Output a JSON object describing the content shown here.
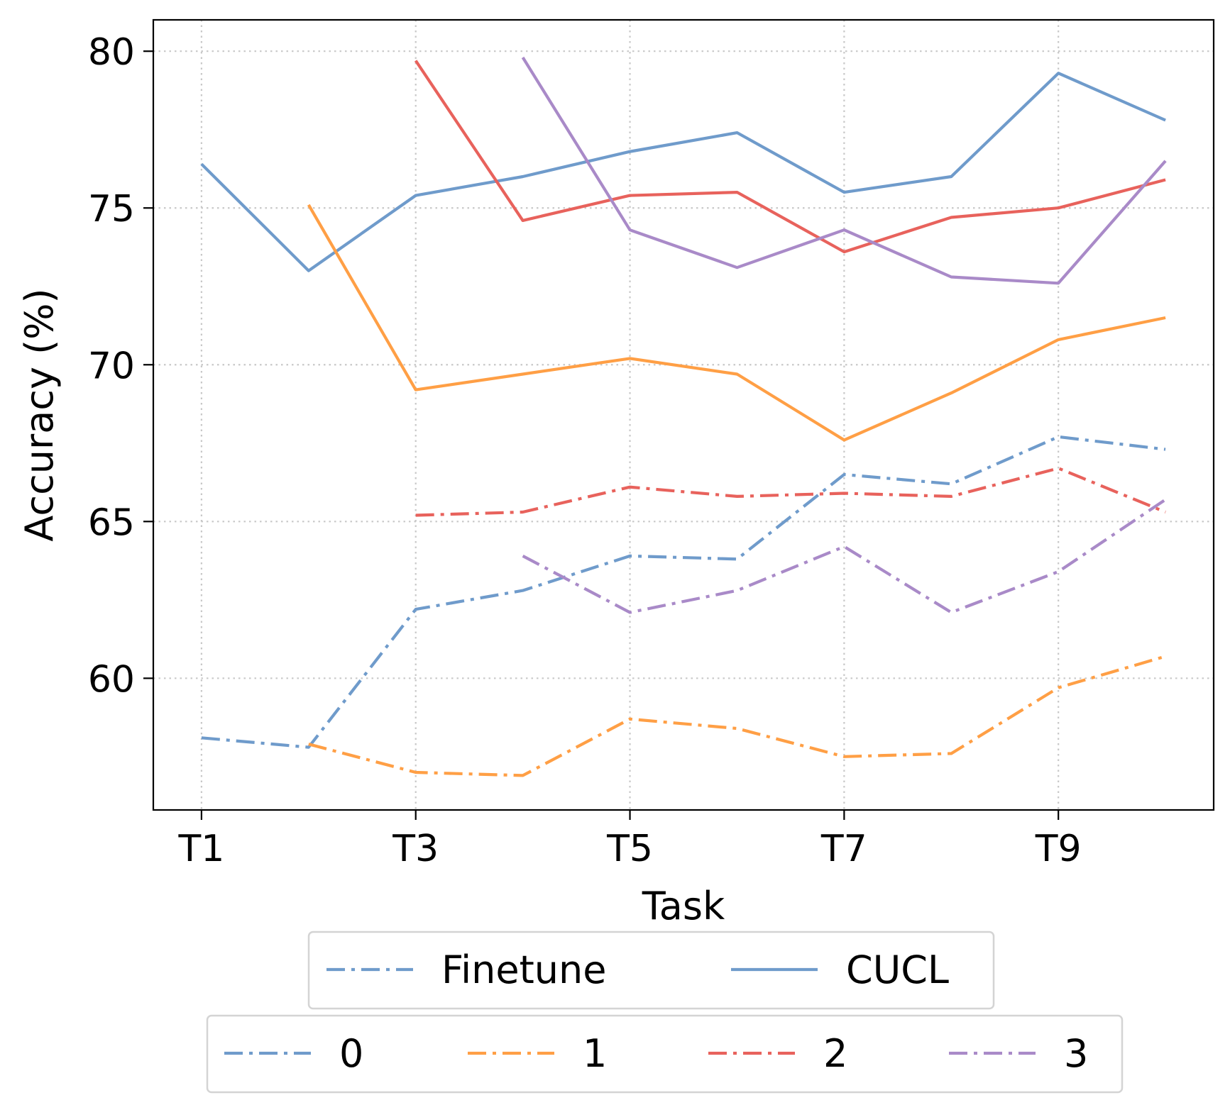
{
  "chart_data": {
    "type": "line",
    "xlabel": "Task",
    "ylabel": "Accuracy (%)",
    "x": [
      1,
      2,
      3,
      4,
      5,
      6,
      7,
      8,
      9,
      10
    ],
    "xticks": [
      {
        "value": 1,
        "label": "T1"
      },
      {
        "value": 3,
        "label": "T3"
      },
      {
        "value": 5,
        "label": "T5"
      },
      {
        "value": 7,
        "label": "T7"
      },
      {
        "value": 9,
        "label": "T9"
      }
    ],
    "yticks": [
      60,
      65,
      70,
      75,
      80
    ],
    "xlim": [
      0.55,
      10.45
    ],
    "ylim": [
      55.8,
      81.0
    ],
    "grid": true,
    "colors": {
      "0": "#6f9bcb",
      "1": "#ff9f45",
      "2": "#e8625c",
      "3": "#a98ac8"
    },
    "series": [
      {
        "method": "Finetune",
        "group": "0",
        "style": "dashdot",
        "x": [
          1,
          2,
          3,
          4,
          5,
          6,
          7,
          8,
          9,
          10
        ],
        "values": [
          58.1,
          57.8,
          62.2,
          62.8,
          63.9,
          63.8,
          66.5,
          66.2,
          67.7,
          67.3
        ]
      },
      {
        "method": "Finetune",
        "group": "1",
        "style": "dashdot",
        "x": [
          2,
          3,
          4,
          5,
          6,
          7,
          8,
          9,
          10
        ],
        "values": [
          57.9,
          57.0,
          56.9,
          58.7,
          58.4,
          57.5,
          57.6,
          59.7,
          60.7
        ]
      },
      {
        "method": "Finetune",
        "group": "2",
        "style": "dashdot",
        "x": [
          3,
          4,
          5,
          6,
          7,
          8,
          9,
          10
        ],
        "values": [
          65.2,
          65.3,
          66.1,
          65.8,
          65.9,
          65.8,
          66.7,
          65.3
        ]
      },
      {
        "method": "Finetune",
        "group": "3",
        "style": "dashdot",
        "x": [
          4,
          5,
          6,
          7,
          8,
          9,
          10
        ],
        "values": [
          63.9,
          62.1,
          62.8,
          64.2,
          62.1,
          63.4,
          65.7
        ]
      },
      {
        "method": "CUCL",
        "group": "0",
        "style": "solid",
        "x": [
          1,
          2,
          3,
          4,
          5,
          6,
          7,
          8,
          9,
          10
        ],
        "values": [
          76.4,
          73.0,
          75.4,
          76.0,
          76.8,
          77.4,
          75.5,
          76.0,
          79.3,
          77.8
        ]
      },
      {
        "method": "CUCL",
        "group": "1",
        "style": "solid",
        "x": [
          2,
          3,
          4,
          5,
          6,
          7,
          8,
          9,
          10
        ],
        "values": [
          75.1,
          69.2,
          69.7,
          70.2,
          69.7,
          67.6,
          69.1,
          70.8,
          71.5
        ]
      },
      {
        "method": "CUCL",
        "group": "2",
        "style": "solid",
        "x": [
          3,
          4,
          5,
          6,
          7,
          8,
          9,
          10
        ],
        "values": [
          79.7,
          74.6,
          75.4,
          75.5,
          73.6,
          74.7,
          75.0,
          75.9
        ]
      },
      {
        "method": "CUCL",
        "group": "3",
        "style": "solid",
        "x": [
          4,
          5,
          6,
          7,
          8,
          9,
          10
        ],
        "values": [
          79.8,
          74.3,
          73.1,
          74.3,
          72.8,
          72.6,
          76.5
        ]
      }
    ],
    "legends": [
      {
        "entries": [
          {
            "label": "Finetune",
            "style": "dashdot",
            "color": "#6f9bcb"
          },
          {
            "label": "CUCL",
            "style": "solid",
            "color": "#6f9bcb"
          }
        ]
      },
      {
        "entries": [
          {
            "label": "0",
            "style": "dashdot",
            "color": "#6f9bcb"
          },
          {
            "label": "1",
            "style": "dashdot",
            "color": "#ff9f45"
          },
          {
            "label": "2",
            "style": "dashdot",
            "color": "#e8625c"
          },
          {
            "label": "3",
            "style": "dashdot",
            "color": "#a98ac8"
          }
        ]
      }
    ],
    "legend_placement": "below plot"
  }
}
